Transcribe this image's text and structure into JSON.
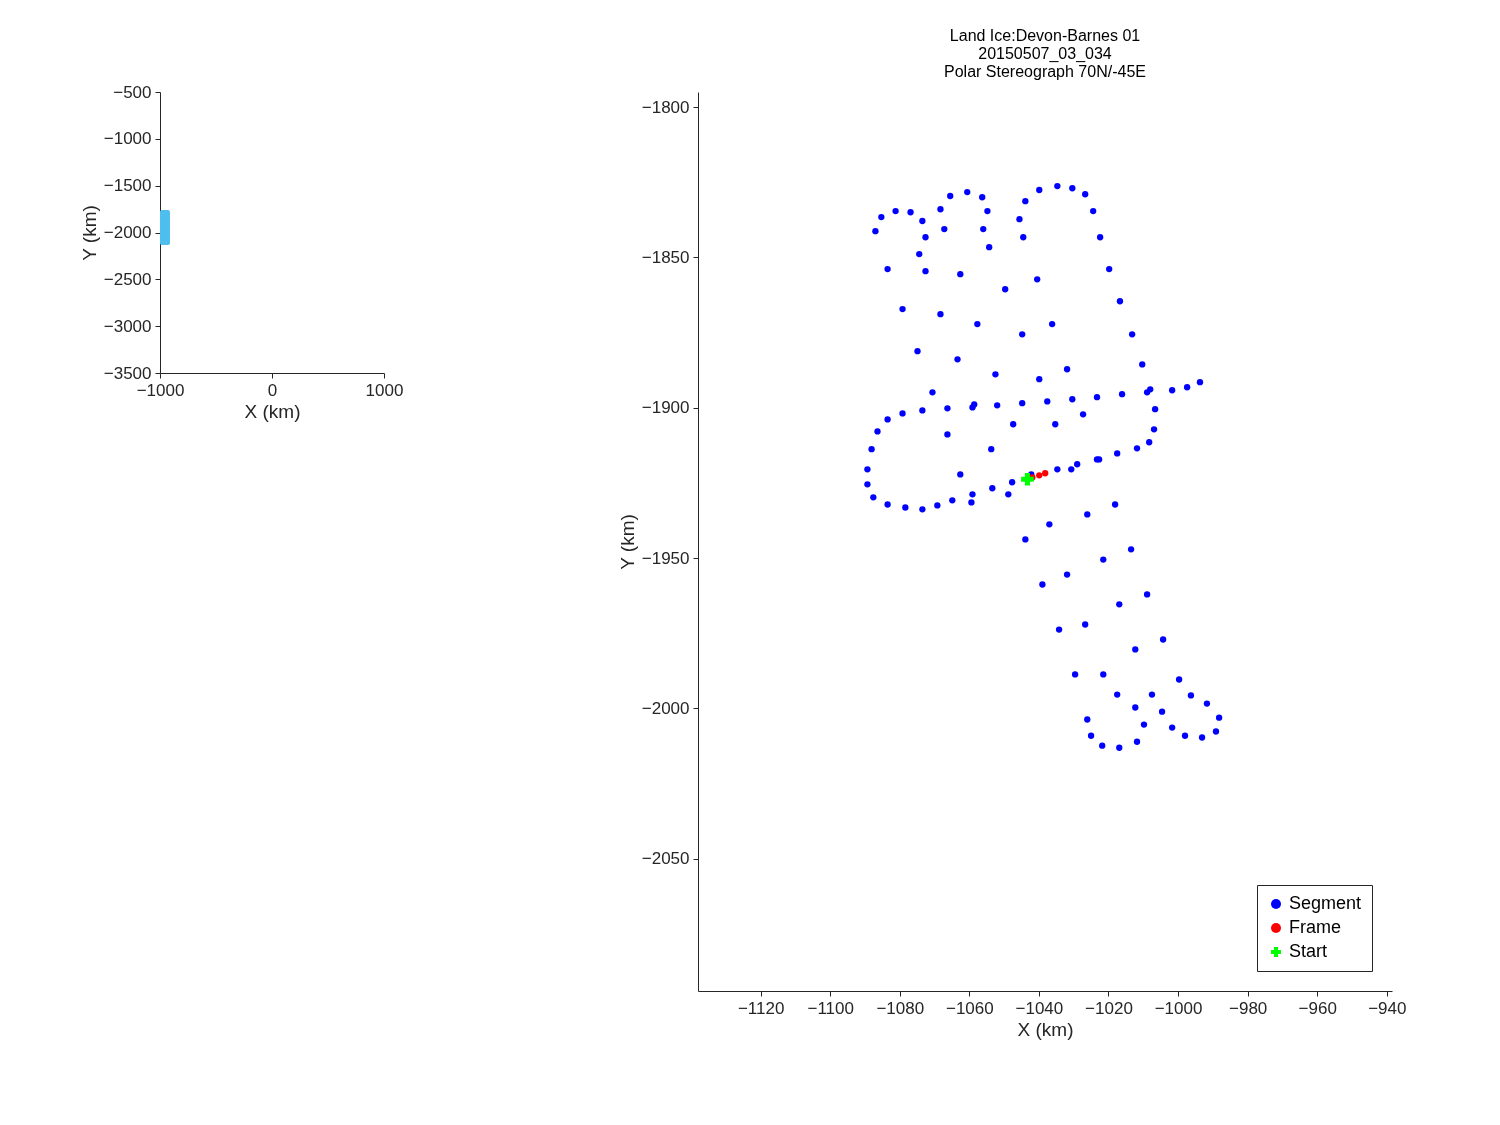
{
  "chart_data": [
    {
      "type": "scatter",
      "xlabel": "X (km)",
      "ylabel": "Y (km)",
      "xlim": [
        -1000,
        1000
      ],
      "xticks": [
        -1000,
        0,
        1000
      ],
      "ylim": [
        -3500,
        -500
      ],
      "yticks": [
        -3500,
        -3000,
        -2500,
        -2000,
        -1500,
        -1000,
        -500
      ],
      "grid": false,
      "legend": false,
      "series": [
        {
          "type": "bar",
          "color": "#4dbeee",
          "x": [
            -955.5
          ],
          "base": [
            -2134
          ],
          "values": [
            374
          ]
        }
      ]
    },
    {
      "type": "scatter",
      "title": "Land Ice:Devon-Barnes 01\n20150507_03_034\nPolar Stereograph 70N/-45E",
      "xlabel": "X (km)",
      "ylabel": "Y (km)",
      "xlim": [
        -1138,
        -938.5
      ],
      "xticks": [
        -1120,
        -1100,
        -1080,
        -1060,
        -1040,
        -1020,
        -1000,
        -980,
        -960,
        -940
      ],
      "ylim": [
        -2094,
        -1795
      ],
      "yticks": [
        -2050,
        -2000,
        -1950,
        -1900,
        -1850,
        -1800
      ],
      "grid": false,
      "legend": "bottom right",
      "series": [
        {
          "name": "Segment",
          "color": "#0000ff",
          "marker": "circle",
          "x": [
            -993.7,
            -997.4,
            -1001.7,
            -1008.9,
            -1016.1,
            -1023.3,
            -1030.4,
            -1037.6,
            -1044.8,
            -1052.0,
            -1059.1,
            -1066.3,
            -1073.5,
            -1079.2,
            -1083.5,
            -1086.4,
            -1088.1,
            -1089.3,
            -1089.3,
            -1087.6,
            -1083.5,
            -1078.4,
            -1073.5,
            -1069.2,
            -1064.9,
            -1059.1,
            -1053.4,
            -1047.7,
            -1034.7,
            -1029.0,
            -1023.3,
            -1017.5,
            -1011.8,
            -1008.3,
            -1006.9,
            -1006.6,
            -1008.0,
            -1010.3,
            -1013.2,
            -1016.7,
            -1019.8,
            -1022.4,
            -1024.4,
            -1026.7,
            -1030.4,
            -1034.7,
            -1039.9,
            -1043.9,
            -1045.6,
            -1044.5,
            -1040.5,
            -1036.2,
            -1031.9,
            -1027.3,
            -1022.7,
            -1018.1,
            -1013.5,
            -1008.9,
            -1004.3,
            -999.7,
            -996.3,
            -991.7,
            -988.2,
            -989.1,
            -993.1,
            -998.0,
            -1001.7,
            -1004.6,
            -1007.5,
            -1012.3,
            -1016.9,
            -1021.5,
            -1026.1,
            -1030.7,
            -1035.3,
            -1039.9,
            -1044.8,
            -1049.7,
            -1054.3,
            -1056.0,
            -1054.8,
            -1056.3,
            -1060.6,
            -1065.5,
            -1068.3,
            -1067.2,
            -1062.6,
            -1057.7,
            -1052.5,
            -1047.4,
            -1042.2,
            -1037.0,
            -1031.9,
            -1026.7,
            -1021.5,
            -1017.5,
            -1012.3,
            -1009.8,
            -1011.8,
            -1016.9,
            -1021.8,
            -1025.0,
            -1026.1,
            -1029.6,
            -1034.2,
            -1039.0,
            -1043.9,
            -1048.8,
            -1053.7,
            -1058.6,
            -1063.4,
            -1068.3,
            -1072.6,
            -1074.4,
            -1072.6,
            -1073.5,
            -1076.9,
            -1081.2,
            -1085.3,
            -1087.0,
            -1083.5,
            -1079.2,
            -1074.9,
            -1070.6,
            -1066.3,
            -1062.6,
            -1059.4
          ],
          "values": [
            -1891.5,
            -1893.2,
            -1894.2,
            -1894.9,
            -1895.5,
            -1896.5,
            -1897.2,
            -1897.9,
            -1898.5,
            -1899.2,
            -1899.9,
            -1900.2,
            -1900.9,
            -1901.9,
            -1903.9,
            -1907.9,
            -1913.8,
            -1920.5,
            -1925.5,
            -1929.8,
            -1932.2,
            -1933.2,
            -1933.8,
            -1932.5,
            -1930.8,
            -1928.8,
            -1926.8,
            -1924.8,
            -1920.5,
            -1918.8,
            -1917.2,
            -1915.2,
            -1913.5,
            -1911.5,
            -1907.2,
            -1900.5,
            -1893.9,
            -1885.6,
            -1875.6,
            -1864.6,
            -1853.9,
            -1843.3,
            -1834.6,
            -1829.0,
            -1827.0,
            -1826.3,
            -1827.6,
            -1831.3,
            -1837.3,
            -1843.3,
            -1857.3,
            -1872.2,
            -1887.2,
            -1902.2,
            -1917.2,
            -1932.2,
            -1947.1,
            -1962.1,
            -1977.1,
            -1990.4,
            -1995.7,
            -1998.4,
            -2003.1,
            -2007.7,
            -2009.7,
            -2009.1,
            -2006.4,
            -2001.1,
            -1995.4,
            -1980.4,
            -1965.4,
            -1950.5,
            -1935.5,
            -1920.5,
            -1905.5,
            -1890.5,
            -1875.6,
            -1860.6,
            -1846.6,
            -1840.6,
            -1834.6,
            -1830.0,
            -1828.3,
            -1829.6,
            -1834.0,
            -1840.6,
            -1855.6,
            -1872.2,
            -1888.9,
            -1905.5,
            -1922.2,
            -1938.8,
            -1955.5,
            -1972.1,
            -1988.7,
            -1995.4,
            -1999.7,
            -2005.4,
            -2011.1,
            -2013.1,
            -2012.4,
            -2009.1,
            -2003.7,
            -1988.7,
            -1973.8,
            -1958.8,
            -1943.8,
            -1928.8,
            -1913.8,
            -1898.9,
            -1883.9,
            -1868.9,
            -1854.6,
            -1848.9,
            -1843.3,
            -1837.9,
            -1835.0,
            -1834.6,
            -1836.6,
            -1841.3,
            -1853.9,
            -1867.2,
            -1881.2,
            -1894.9,
            -1908.9,
            -1922.2,
            -1931.5
          ]
        },
        {
          "name": "Frame",
          "color": "#ff0000",
          "marker": "circle",
          "x": [
            -1041.9,
            -1039.9,
            -1038.2
          ],
          "values": [
            -1923.2,
            -1922.5,
            -1921.8
          ]
        },
        {
          "name": "Start",
          "color": "#00ff00",
          "marker": "cross",
          "x": [
            -1043.3
          ],
          "values": [
            -1923.8
          ]
        }
      ]
    }
  ]
}
